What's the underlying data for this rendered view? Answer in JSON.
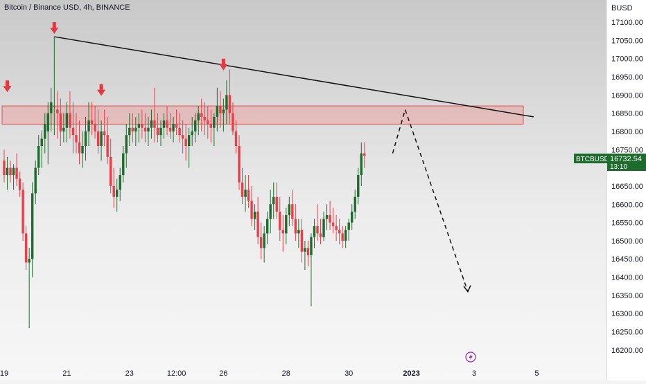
{
  "title": "Bitcoin / Binance USD, 4h, BINANCE",
  "currency": "BUSD",
  "ticker": "BTCBUSD",
  "last_price": "16732.54",
  "countdown": "13:10",
  "colors": {
    "up": "#1e6b2e",
    "down": "#e8404a",
    "zone": "#f08080",
    "trend": "#111111",
    "badge": "#1e6b2e"
  },
  "chart_data": {
    "type": "candlestick",
    "ylim": [
      16160,
      17160
    ],
    "ticks": [
      17100,
      17050,
      17000,
      16950,
      16900,
      16850,
      16800,
      16750,
      16700,
      16650,
      16600,
      16550,
      16500,
      16450,
      16400,
      16350,
      16300,
      16250,
      16200
    ],
    "tick_labels": [
      "17100.00",
      "17050.00",
      "17000.00",
      "16950.00",
      "16900.00",
      "16850.00",
      "16800.00",
      "16750.00",
      "16700.00",
      "16650.00",
      "16600.00",
      "16550.00",
      "16500.00",
      "16450.00",
      "16400.00",
      "16350.00",
      "16300.00",
      "16250.00",
      "16200.00"
    ],
    "x_labels": [
      {
        "bar": 0,
        "label": "19"
      },
      {
        "bar": 20,
        "label": "21"
      },
      {
        "bar": 40,
        "label": "23"
      },
      {
        "bar": 55,
        "label": "12:00"
      },
      {
        "bar": 70,
        "label": "26"
      },
      {
        "bar": 90,
        "label": "28"
      },
      {
        "bar": 110,
        "label": "30"
      },
      {
        "bar": 130,
        "label": "2023"
      },
      {
        "bar": 150,
        "label": "3"
      },
      {
        "bar": 170,
        "label": "5"
      }
    ],
    "candles": [
      [
        16720,
        16750,
        16660,
        16680
      ],
      [
        16680,
        16730,
        16640,
        16700
      ],
      [
        16700,
        16720,
        16660,
        16680
      ],
      [
        16680,
        16710,
        16640,
        16700
      ],
      [
        16700,
        16740,
        16650,
        16670
      ],
      [
        16670,
        16690,
        16620,
        16640
      ],
      [
        16640,
        16660,
        16500,
        16520
      ],
      [
        16520,
        16540,
        16420,
        16440
      ],
      [
        16440,
        16480,
        16260,
        16450
      ],
      [
        16450,
        16660,
        16400,
        16630
      ],
      [
        16630,
        16720,
        16600,
        16700
      ],
      [
        16700,
        16790,
        16680,
        16760
      ],
      [
        16760,
        16800,
        16700,
        16780
      ],
      [
        16780,
        16850,
        16740,
        16820
      ],
      [
        16800,
        16880,
        16710,
        16850
      ],
      [
        16850,
        16920,
        16800,
        16880
      ],
      [
        16870,
        17060,
        16790,
        16870
      ],
      [
        16860,
        16910,
        16780,
        16850
      ],
      [
        16850,
        16890,
        16760,
        16800
      ],
      [
        16800,
        16850,
        16770,
        16810
      ],
      [
        16810,
        16880,
        16770,
        16850
      ],
      [
        16850,
        16910,
        16780,
        16810
      ],
      [
        16810,
        16880,
        16740,
        16790
      ],
      [
        16790,
        16850,
        16740,
        16770
      ],
      [
        16770,
        16830,
        16710,
        16740
      ],
      [
        16740,
        16800,
        16700,
        16760
      ],
      [
        16760,
        16840,
        16720,
        16800
      ],
      [
        16800,
        16880,
        16760,
        16830
      ],
      [
        16830,
        16880,
        16790,
        16820
      ],
      [
        16820,
        16870,
        16780,
        16800
      ],
      [
        16800,
        16860,
        16740,
        16760
      ],
      [
        16760,
        16830,
        16720,
        16800
      ],
      [
        16800,
        16860,
        16760,
        16790
      ],
      [
        16790,
        16840,
        16710,
        16730
      ],
      [
        16730,
        16780,
        16630,
        16650
      ],
      [
        16650,
        16700,
        16590,
        16620
      ],
      [
        16620,
        16670,
        16580,
        16640
      ],
      [
        16640,
        16700,
        16610,
        16680
      ],
      [
        16680,
        16760,
        16660,
        16740
      ],
      [
        16740,
        16820,
        16700,
        16790
      ],
      [
        16790,
        16850,
        16760,
        16810
      ],
      [
        16810,
        16850,
        16770,
        16800
      ],
      [
        16800,
        16840,
        16760,
        16810
      ],
      [
        16810,
        16850,
        16770,
        16820
      ],
      [
        16820,
        16860,
        16780,
        16810
      ],
      [
        16810,
        16850,
        16770,
        16800
      ],
      [
        16800,
        16840,
        16760,
        16810
      ],
      [
        16810,
        16860,
        16780,
        16830
      ],
      [
        16830,
        16920,
        16770,
        16810
      ],
      [
        16810,
        16850,
        16770,
        16790
      ],
      [
        16790,
        16830,
        16760,
        16810
      ],
      [
        16810,
        16850,
        16780,
        16830
      ],
      [
        16830,
        16870,
        16790,
        16810
      ],
      [
        16810,
        16850,
        16780,
        16800
      ],
      [
        16800,
        16840,
        16770,
        16820
      ],
      [
        16820,
        16860,
        16790,
        16810
      ],
      [
        16810,
        16850,
        16770,
        16790
      ],
      [
        16790,
        16830,
        16740,
        16780
      ],
      [
        16780,
        16820,
        16720,
        16760
      ],
      [
        16760,
        16810,
        16700,
        16790
      ],
      [
        16790,
        16840,
        16760,
        16800
      ],
      [
        16800,
        16850,
        16770,
        16830
      ],
      [
        16830,
        16870,
        16790,
        16850
      ],
      [
        16850,
        16890,
        16800,
        16840
      ],
      [
        16840,
        16880,
        16790,
        16830
      ],
      [
        16830,
        16870,
        16780,
        16820
      ],
      [
        16820,
        16860,
        16770,
        16810
      ],
      [
        16810,
        16850,
        16760,
        16840
      ],
      [
        16840,
        16920,
        16800,
        16870
      ],
      [
        16870,
        16910,
        16810,
        16850
      ],
      [
        16850,
        16890,
        16800,
        16860
      ],
      [
        16860,
        16940,
        16820,
        16900
      ],
      [
        16900,
        16970,
        16820,
        16850
      ],
      [
        16850,
        16880,
        16790,
        16800
      ],
      [
        16800,
        16830,
        16740,
        16760
      ],
      [
        16760,
        16790,
        16640,
        16660
      ],
      [
        16660,
        16700,
        16600,
        16620
      ],
      [
        16620,
        16680,
        16580,
        16640
      ],
      [
        16640,
        16680,
        16590,
        16610
      ],
      [
        16610,
        16650,
        16540,
        16560
      ],
      [
        16560,
        16600,
        16530,
        16580
      ],
      [
        16580,
        16620,
        16490,
        16510
      ],
      [
        16510,
        16550,
        16450,
        16480
      ],
      [
        16480,
        16540,
        16440,
        16520
      ],
      [
        16520,
        16580,
        16490,
        16560
      ],
      [
        16560,
        16640,
        16520,
        16600
      ],
      [
        16600,
        16660,
        16560,
        16620
      ],
      [
        16620,
        16660,
        16560,
        16580
      ],
      [
        16580,
        16620,
        16500,
        16530
      ],
      [
        16530,
        16570,
        16470,
        16520
      ],
      [
        16520,
        16590,
        16490,
        16570
      ],
      [
        16570,
        16620,
        16540,
        16600
      ],
      [
        16600,
        16640,
        16540,
        16560
      ],
      [
        16560,
        16600,
        16500,
        16520
      ],
      [
        16520,
        16560,
        16480,
        16530
      ],
      [
        16530,
        16560,
        16440,
        16470
      ],
      [
        16470,
        16500,
        16420,
        16480
      ],
      [
        16480,
        16500,
        16430,
        16460
      ],
      [
        16460,
        16520,
        16320,
        16510
      ],
      [
        16510,
        16560,
        16480,
        16540
      ],
      [
        16540,
        16600,
        16500,
        16520
      ],
      [
        16520,
        16560,
        16490,
        16510
      ],
      [
        16510,
        16580,
        16500,
        16560
      ],
      [
        16560,
        16600,
        16530,
        16570
      ],
      [
        16570,
        16610,
        16530,
        16550
      ],
      [
        16550,
        16590,
        16520,
        16540
      ],
      [
        16540,
        16570,
        16500,
        16530
      ],
      [
        16530,
        16560,
        16490,
        16520
      ],
      [
        16520,
        16540,
        16480,
        16500
      ],
      [
        16500,
        16540,
        16480,
        16530
      ],
      [
        16530,
        16560,
        16500,
        16550
      ],
      [
        16550,
        16600,
        16530,
        16580
      ],
      [
        16580,
        16640,
        16560,
        16620
      ],
      [
        16620,
        16700,
        16600,
        16680
      ],
      [
        16680,
        16770,
        16650,
        16740
      ],
      [
        16740,
        16770,
        16700,
        16733
      ]
    ],
    "resistance_zone": [
      16820,
      16870
    ],
    "arrows": [
      {
        "bar": 1,
        "price": 16900
      },
      {
        "bar": 16,
        "price": 17060
      },
      {
        "bar": 31,
        "price": 16890
      },
      {
        "bar": 70,
        "price": 16960
      }
    ],
    "trendline": [
      {
        "bar": 16,
        "price": 17060
      },
      {
        "bar": 169,
        "price": 16840
      }
    ],
    "projection": [
      {
        "bar": 124,
        "price": 16740
      },
      {
        "bar": 128,
        "price": 16860
      },
      {
        "bar": 148,
        "price": 16360
      }
    ]
  }
}
